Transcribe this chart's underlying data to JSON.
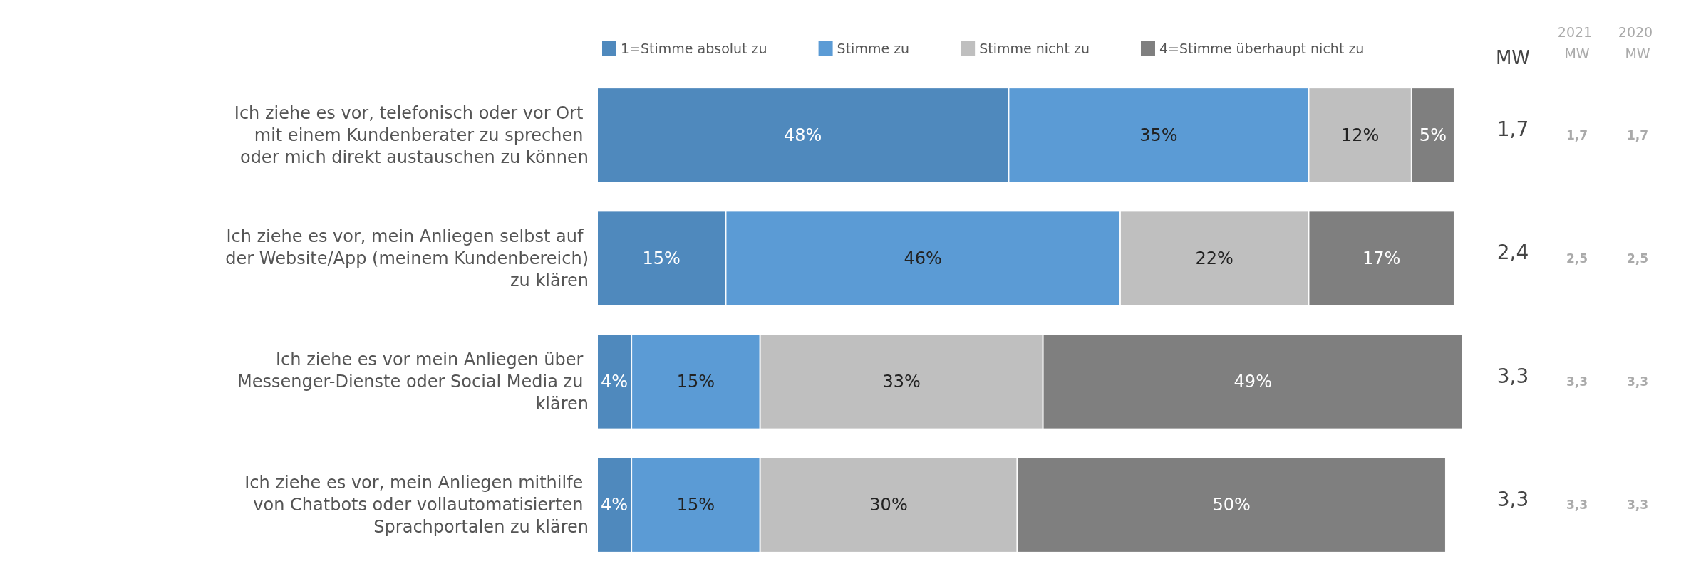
{
  "chart_data": {
    "type": "bar",
    "orientation": "horizontal",
    "stacked": true,
    "legend": "top",
    "tick_labels": "y",
    "categories": [
      "Ich ziehe es vor, telefonisch oder vor Ort mit einem Kundenberater zu sprechen oder mich direkt austauschen zu können",
      "Ich ziehe es vor, mein Anliegen selbst auf der Website/App (meinem Kundenbereich) zu klären",
      "Ich ziehe es vor mein Anliegen über Messenger-Dienste oder Social Media zu klären",
      "Ich ziehe es vor, mein Anliegen mithilfe von Chatbots oder vollautomatisierten Sprachportalen zu klären"
    ],
    "series": [
      {
        "name": "1=Stimme absolut zu",
        "color": "#4f89bd",
        "values": [
          48,
          15,
          4,
          4
        ],
        "value_labels": [
          "48%",
          "15%",
          "4%",
          "4%"
        ]
      },
      {
        "name": "Stimme zu",
        "color": "#5b9bd5",
        "values": [
          35,
          46,
          15,
          15
        ],
        "value_labels": [
          "35%",
          "46%",
          "15%",
          "15%"
        ]
      },
      {
        "name": "Stimme nicht zu",
        "color": "#bfbfbf",
        "values": [
          12,
          22,
          33,
          30
        ],
        "value_labels": [
          "12%",
          "22%",
          "33%",
          "30%"
        ]
      },
      {
        "name": "4=Stimme überhaupt nicht zu",
        "color": "#7f7f7f",
        "values": [
          5,
          17,
          49,
          50
        ],
        "value_labels": [
          "5%",
          "17%",
          "49%",
          "50%"
        ]
      }
    ],
    "annotations": [
      "MW",
      "2021 MW",
      "2020 MW",
      "1,7",
      "1,7",
      "1,7",
      "2,4",
      "2,5",
      "2,5",
      "3,3",
      "3,3",
      "3,3",
      "3,3",
      "3,3",
      "3,3"
    ]
  }
}
